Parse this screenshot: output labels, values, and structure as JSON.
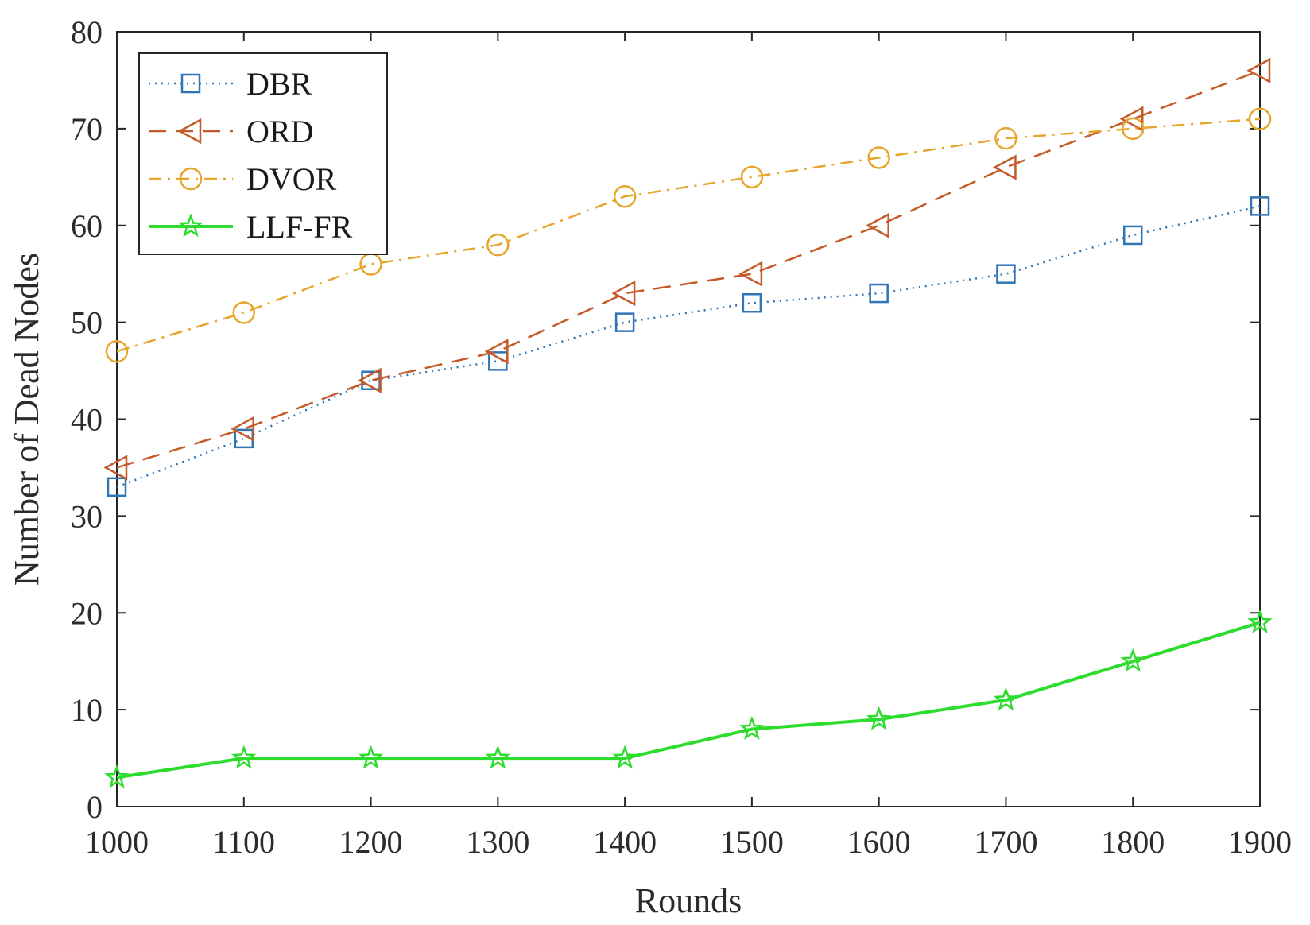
{
  "chart_data": {
    "type": "line",
    "title": "",
    "xlabel": "Rounds",
    "ylabel": "Number of Dead Nodes",
    "x": [
      1000,
      1100,
      1200,
      1300,
      1400,
      1500,
      1600,
      1700,
      1800,
      1900
    ],
    "xlim": [
      1000,
      1900
    ],
    "ylim": [
      0,
      80
    ],
    "xticks": [
      "1000",
      "1100",
      "1200",
      "1300",
      "1400",
      "1500",
      "1600",
      "1700",
      "1800",
      "1900"
    ],
    "yticks": [
      "0",
      "10",
      "20",
      "30",
      "40",
      "50",
      "60",
      "70",
      "80"
    ],
    "grid": false,
    "legend_position": "top-left",
    "series": [
      {
        "name": "DBR",
        "values": [
          33,
          38,
          44,
          46,
          50,
          52,
          53,
          55,
          59,
          62
        ],
        "color": "#2e75b6",
        "dash": "dotted",
        "marker": "square"
      },
      {
        "name": "ORD",
        "values": [
          35,
          39,
          44,
          47,
          53,
          55,
          60,
          66,
          71,
          76
        ],
        "color": "#c55a28",
        "dash": "dashed",
        "marker": "triangle-left"
      },
      {
        "name": "DVOR",
        "values": [
          47,
          51,
          56,
          58,
          63,
          65,
          67,
          69,
          70,
          71
        ],
        "color": "#e6a52b",
        "dash": "dashdot",
        "marker": "circle"
      },
      {
        "name": "LLF-FR",
        "values": [
          3,
          5,
          5,
          5,
          5,
          8,
          9,
          11,
          15,
          19
        ],
        "color": "#2ddc2d",
        "dash": "solid",
        "marker": "star"
      }
    ]
  }
}
